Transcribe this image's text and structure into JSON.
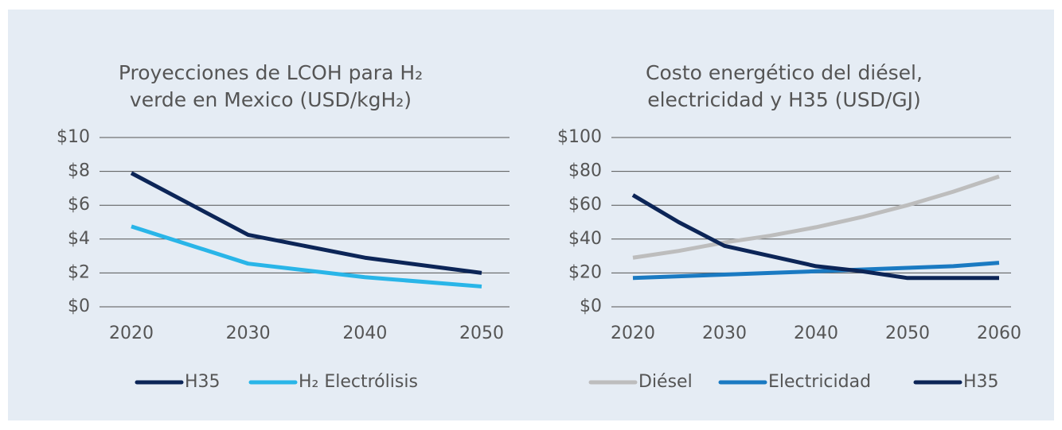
{
  "chart_data": [
    {
      "type": "line",
      "title": [
        "Proyecciones de LCOH para H₂",
        "verde en Mexico (USD/kgH₂)"
      ],
      "x": [
        2020,
        2030,
        2040,
        2050
      ],
      "xlim": [
        2020,
        2050
      ],
      "xticks": [
        2020,
        2030,
        2040,
        2050
      ],
      "ylim": [
        0,
        10
      ],
      "yticks": [
        {
          "value": 0,
          "label": "$0"
        },
        {
          "value": 2,
          "label": "$2"
        },
        {
          "value": 4,
          "label": "$4"
        },
        {
          "value": 6,
          "label": "$6"
        },
        {
          "value": 8,
          "label": "$8"
        },
        {
          "value": 10,
          "label": "$10"
        }
      ],
      "grid": true,
      "series": [
        {
          "name": "H35",
          "color": "#0c2557",
          "values": [
            7.9,
            4.25,
            2.9,
            2.0
          ]
        },
        {
          "name": "H₂ Electrólisis",
          "color": "#29b5e8",
          "values": [
            4.75,
            2.55,
            1.75,
            1.2
          ]
        }
      ]
    },
    {
      "type": "line",
      "title": [
        "Costo energético del diésel,",
        "electricidad y H35 (USD/GJ)"
      ],
      "x": [
        2020,
        2025,
        2030,
        2035,
        2040,
        2045,
        2050,
        2055,
        2060
      ],
      "xlim": [
        2020,
        2060
      ],
      "xticks": [
        2020,
        2030,
        2040,
        2050,
        2060
      ],
      "ylim": [
        0,
        100
      ],
      "yticks": [
        {
          "value": 0,
          "label": "$0"
        },
        {
          "value": 20,
          "label": "$20"
        },
        {
          "value": 40,
          "label": "$40"
        },
        {
          "value": 60,
          "label": "$60"
        },
        {
          "value": 80,
          "label": "$80"
        },
        {
          "value": 100,
          "label": "$100"
        }
      ],
      "grid": true,
      "series": [
        {
          "name": "Diésel",
          "color": "#bdbdbd",
          "values": [
            29,
            33,
            38,
            42,
            47,
            53,
            60,
            68,
            77
          ]
        },
        {
          "name": "Electricidad",
          "color": "#1a7ac2",
          "values": [
            17,
            18,
            19,
            20,
            21,
            22,
            23,
            24,
            26
          ]
        },
        {
          "name": "H35",
          "color": "#0c2557",
          "values": [
            66,
            50,
            36,
            30,
            24,
            21,
            17,
            17,
            17
          ]
        }
      ]
    }
  ]
}
